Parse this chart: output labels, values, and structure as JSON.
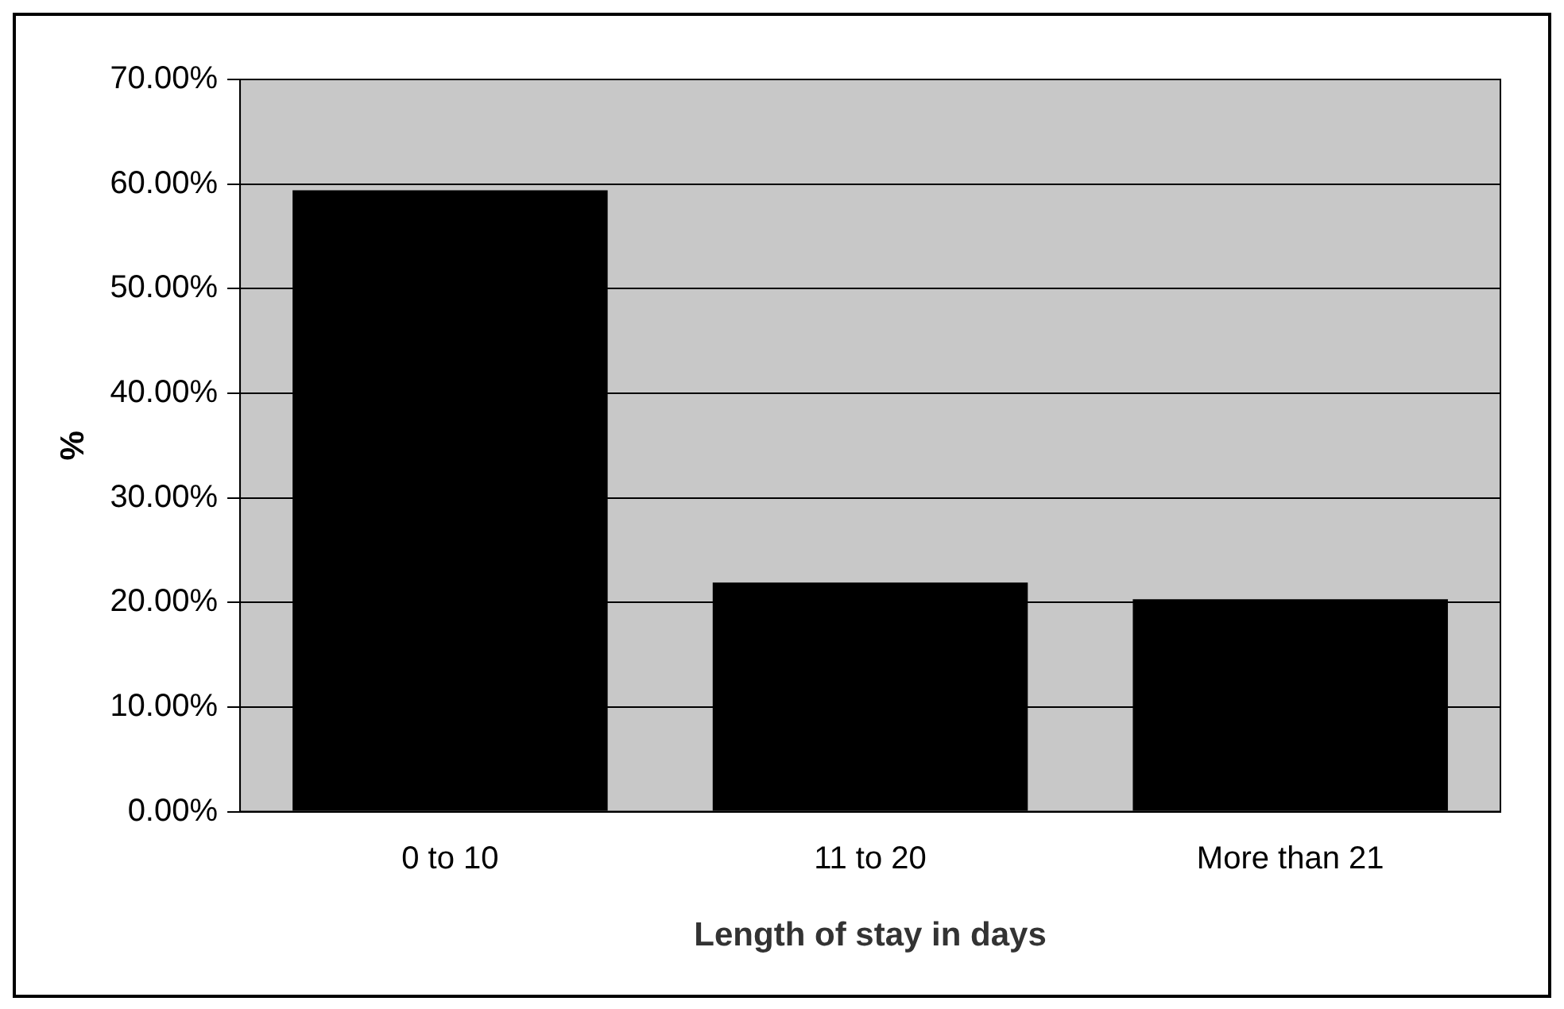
{
  "chart_data": {
    "type": "bar",
    "xlabel": "Length of stay in days",
    "ylabel": "%",
    "categories": [
      "0 to 10",
      "11 to 20",
      "More than 21"
    ],
    "values": [
      59.4,
      21.9,
      20.3
    ],
    "color": "#000000",
    "ylim": [
      0,
      70
    ],
    "yticks": [
      {
        "value": 0,
        "label": "0.00%"
      },
      {
        "value": 10,
        "label": "10.00%"
      },
      {
        "value": 20,
        "label": "20.00%"
      },
      {
        "value": 30,
        "label": "30.00%"
      },
      {
        "value": 40,
        "label": "40.00%"
      },
      {
        "value": 50,
        "label": "50.00%"
      },
      {
        "value": 60,
        "label": "60.00%"
      },
      {
        "value": 70,
        "label": "70.00%"
      }
    ],
    "grid": "y",
    "legend": false
  }
}
